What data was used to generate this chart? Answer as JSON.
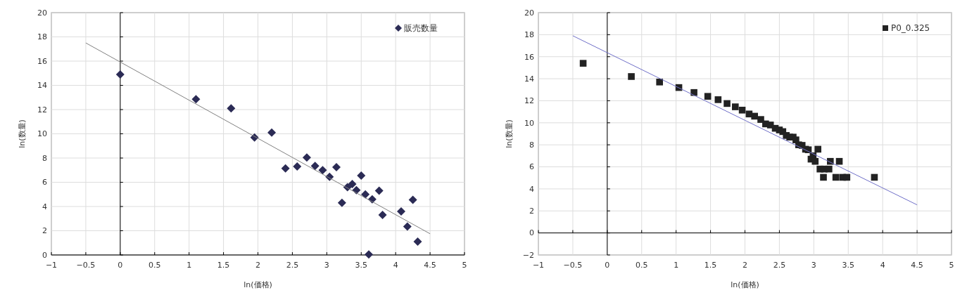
{
  "chart_data": [
    {
      "type": "scatter",
      "xlabel": "ln(価格)",
      "ylabel": "ln(数量)",
      "xlim": [
        -1,
        5
      ],
      "ylim": [
        0,
        20
      ],
      "xticks": [
        -1,
        -0.5,
        0,
        0.5,
        1,
        1.5,
        2,
        2.5,
        3,
        3.5,
        4,
        4.5,
        5
      ],
      "yticks": [
        0,
        2,
        4,
        6,
        8,
        10,
        12,
        14,
        16,
        18,
        20
      ],
      "grid": true,
      "legend": "top right",
      "series": [
        {
          "name": "販売数量",
          "marker": "diamond",
          "color": "#2b2b55",
          "x": [
            0,
            1.1,
            1.61,
            1.95,
            2.2,
            2.4,
            2.57,
            2.71,
            2.83,
            2.94,
            3.04,
            3.14,
            3.22,
            3.3,
            3.37,
            3.43,
            3.5,
            3.56,
            3.61,
            3.66,
            3.76,
            3.81,
            4.08,
            4.17,
            4.25,
            4.32
          ],
          "values": [
            14.9,
            12.85,
            12.1,
            9.7,
            10.1,
            7.15,
            7.3,
            8.05,
            7.35,
            7.0,
            6.45,
            7.25,
            4.3,
            5.6,
            5.85,
            5.35,
            6.55,
            5.0,
            0.05,
            4.6,
            5.3,
            3.3,
            3.6,
            2.35,
            4.55,
            1.1
          ]
        },
        {
          "type": "line",
          "color": "#808080",
          "x": [
            -0.5,
            4.5
          ],
          "values": [
            17.5,
            1.75
          ]
        }
      ]
    },
    {
      "type": "scatter",
      "xlabel": "ln(価格)",
      "ylabel": "ln(数量)",
      "xlim": [
        -1,
        5
      ],
      "ylim": [
        -2,
        20
      ],
      "xticks": [
        -1,
        -0.5,
        0,
        0.5,
        1,
        1.5,
        2,
        2.5,
        3,
        3.5,
        4,
        4.5,
        5
      ],
      "yticks": [
        -2,
        0,
        2,
        4,
        6,
        8,
        10,
        12,
        14,
        16,
        18,
        20
      ],
      "grid": true,
      "legend": "top right",
      "series": [
        {
          "name": "P0_0.325",
          "marker": "square",
          "color": "#222222",
          "x": [
            -0.35,
            0.35,
            0.76,
            1.04,
            1.26,
            1.46,
            1.61,
            1.74,
            1.86,
            1.96,
            2.06,
            2.14,
            2.23,
            2.3,
            2.37,
            2.44,
            2.5,
            2.55,
            2.6,
            2.65,
            2.7,
            2.74,
            2.78,
            2.83,
            2.88,
            2.92,
            2.96,
            2.99,
            3.02,
            3.06,
            3.09,
            3.14,
            3.15,
            3.22,
            3.24,
            3.32,
            3.37,
            3.42,
            3.48,
            3.88
          ],
          "values": [
            15.4,
            14.2,
            13.7,
            13.2,
            12.75,
            12.4,
            12.1,
            11.75,
            11.45,
            11.15,
            10.8,
            10.6,
            10.3,
            9.9,
            9.8,
            9.5,
            9.35,
            9.2,
            8.85,
            8.7,
            8.7,
            8.45,
            8.0,
            7.95,
            7.6,
            7.55,
            6.7,
            7.0,
            6.5,
            7.6,
            5.8,
            5.05,
            5.8,
            5.8,
            6.5,
            5.05,
            6.5,
            5.05,
            5.05,
            5.05
          ]
        },
        {
          "type": "line",
          "color": "#7070c8",
          "x": [
            -0.5,
            4.5
          ],
          "values": [
            17.9,
            2.55
          ]
        }
      ]
    }
  ]
}
